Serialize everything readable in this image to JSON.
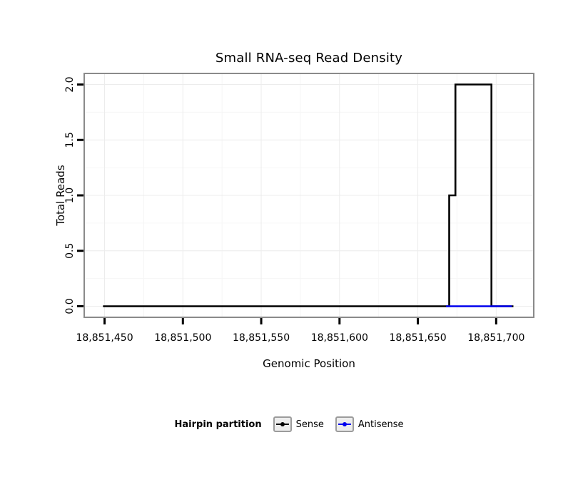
{
  "title": "Small RNA-seq Read Density",
  "legend": {
    "title": "Hairpin partition",
    "entries": [
      {
        "label": "Sense",
        "color": "#000000"
      },
      {
        "label": "Antisense",
        "color": "#0000EE"
      }
    ]
  },
  "chart_data": {
    "type": "line",
    "title": "Small RNA-seq Read Density",
    "xlabel": "Genomic Position",
    "ylabel": "Total Reads",
    "xlim": [
      18851437,
      18851724
    ],
    "ylim": [
      -0.1,
      2.1
    ],
    "x_ticks": [
      18851450,
      18851500,
      18851550,
      18851600,
      18851650,
      18851700
    ],
    "x_tick_labels": [
      "18,851,450",
      "18,851,500",
      "18,851,550",
      "18,851,600",
      "18,851,650",
      "18,851,700"
    ],
    "y_ticks": [
      0.0,
      0.5,
      1.0,
      1.5,
      2.0
    ],
    "y_tick_labels": [
      "0.0",
      "0.5",
      "1.0",
      "1.5",
      "2.0"
    ],
    "grid": true,
    "legend_position": "bottom",
    "series": [
      {
        "name": "Sense",
        "color": "#000000",
        "points": [
          [
            18851449,
            0
          ],
          [
            18851670,
            0
          ],
          [
            18851670,
            1
          ],
          [
            18851674,
            1
          ],
          [
            18851674,
            2
          ],
          [
            18851697,
            2
          ],
          [
            18851697,
            0
          ],
          [
            18851711,
            0
          ]
        ]
      },
      {
        "name": "Antisense",
        "color": "#0000EE",
        "points": [
          [
            18851668,
            0
          ],
          [
            18851710,
            0
          ]
        ]
      }
    ]
  }
}
